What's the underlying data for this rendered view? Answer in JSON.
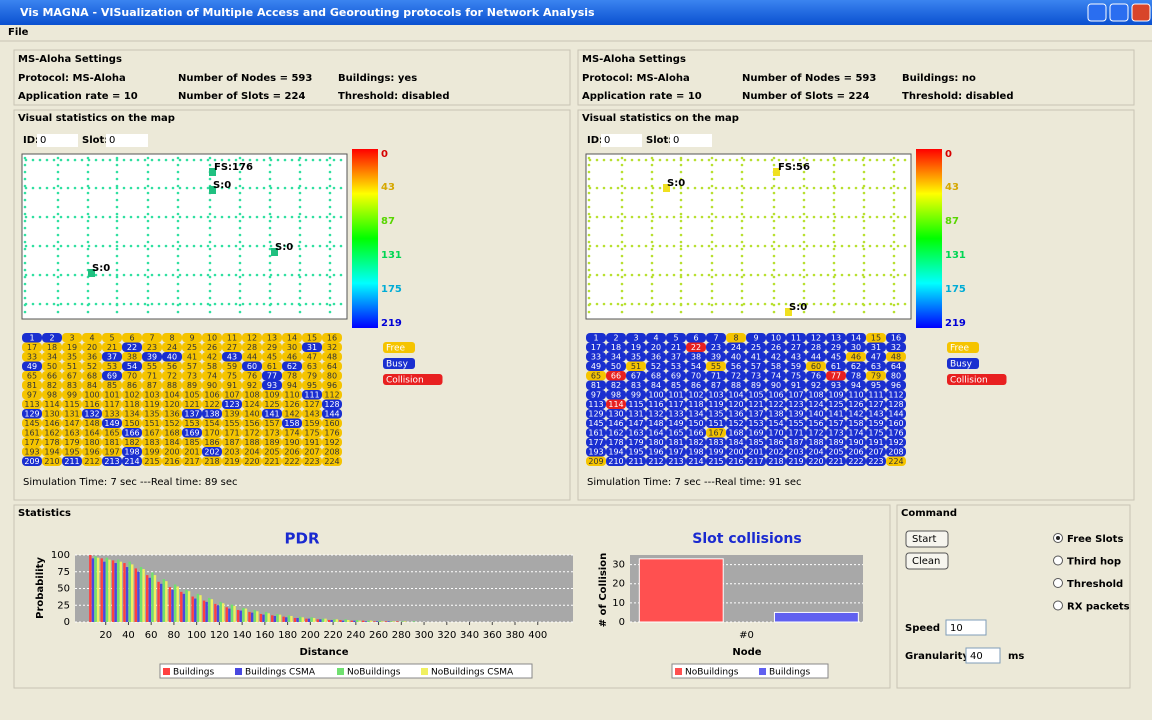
{
  "window": {
    "title": "Vis MAGNA - VISualization of Multiple Access and Georouting protocols for Network Analysis",
    "menu": [
      "File"
    ]
  },
  "panels": [
    {
      "settings_title": "MS-Aloha Settings",
      "settings": [
        "Protocol: MS-Aloha",
        "Number of Nodes = 593",
        "Buildings: yes",
        "Application rate = 10",
        "Number of Slots = 224",
        "Threshold: disabled"
      ],
      "map_title": "Visual statistics on the map",
      "id_label": "ID:",
      "id_value": "0",
      "slot_label": "Slot:",
      "slot_value": "0",
      "map_labels": [
        "FS:176",
        "S:0",
        "S:0",
        "S:0"
      ],
      "slot_states": [
        1,
        1,
        0,
        0,
        0,
        0,
        0,
        0,
        0,
        0,
        0,
        0,
        0,
        0,
        0,
        0,
        0,
        0,
        0,
        0,
        0,
        1,
        0,
        0,
        0,
        0,
        0,
        0,
        0,
        0,
        1,
        0,
        0,
        0,
        0,
        0,
        1,
        0,
        1,
        1,
        0,
        0,
        1,
        0,
        0,
        0,
        0,
        0,
        1,
        0,
        0,
        0,
        0,
        1,
        0,
        0,
        0,
        0,
        0,
        1,
        0,
        1,
        0,
        0,
        0,
        0,
        0,
        0,
        1,
        0,
        0,
        0,
        0,
        0,
        0,
        0,
        1,
        0,
        0,
        0,
        0,
        0,
        0,
        0,
        0,
        0,
        0,
        0,
        0,
        0,
        0,
        0,
        1,
        0,
        0,
        0,
        0,
        0,
        0,
        0,
        0,
        0,
        0,
        0,
        0,
        0,
        0,
        0,
        0,
        0,
        1,
        0,
        0,
        0,
        0,
        0,
        0,
        0,
        0,
        0,
        0,
        0,
        1,
        0,
        0,
        0,
        0,
        1,
        1,
        0,
        0,
        1,
        0,
        0,
        0,
        0,
        1,
        1,
        0,
        0,
        1,
        0,
        0,
        1,
        0,
        0,
        0,
        0,
        1,
        0,
        0,
        0,
        0,
        0,
        0,
        0,
        0,
        1,
        0,
        0,
        0,
        0,
        0,
        0,
        0,
        1,
        0,
        0,
        1,
        0,
        0,
        0,
        0,
        0,
        0,
        0,
        0,
        0,
        0,
        0,
        0,
        0,
        0,
        0,
        0,
        0,
        0,
        0,
        0,
        0,
        0,
        0,
        0,
        0,
        0,
        0,
        0,
        1,
        0,
        0,
        0,
        1,
        0,
        0,
        0,
        0,
        0,
        0,
        1,
        0,
        1,
        0,
        1,
        1,
        0,
        0,
        0,
        0,
        0,
        0,
        0,
        0,
        0,
        0
      ],
      "sim_time": "Simulation Time: 7 sec ---Real time: 89 sec"
    },
    {
      "settings_title": "MS-Aloha Settings",
      "settings": [
        "Protocol: MS-Aloha",
        "Number of Nodes = 593",
        "Buildings: no",
        "Application rate = 10",
        "Number of Slots = 224",
        "Threshold: disabled"
      ],
      "map_title": "Visual statistics on the map",
      "id_label": "ID:",
      "id_value": "0",
      "slot_label": "Slot:",
      "slot_value": "0",
      "map_labels": [
        "FS:56",
        "S:0",
        "S:0"
      ],
      "slot_states": [
        1,
        1,
        1,
        1,
        1,
        1,
        1,
        0,
        1,
        1,
        1,
        1,
        1,
        1,
        0,
        1,
        1,
        1,
        1,
        1,
        1,
        2,
        1,
        1,
        1,
        1,
        1,
        1,
        1,
        1,
        1,
        1,
        1,
        1,
        1,
        1,
        1,
        1,
        1,
        1,
        1,
        1,
        1,
        1,
        1,
        0,
        1,
        0,
        1,
        1,
        0,
        1,
        1,
        1,
        0,
        1,
        1,
        1,
        1,
        0,
        1,
        1,
        1,
        1,
        0,
        2,
        1,
        1,
        1,
        1,
        1,
        1,
        1,
        1,
        1,
        1,
        2,
        1,
        0,
        1,
        1,
        1,
        1,
        1,
        1,
        1,
        1,
        1,
        1,
        1,
        1,
        1,
        1,
        1,
        1,
        1,
        1,
        1,
        1,
        1,
        1,
        1,
        1,
        1,
        1,
        1,
        1,
        1,
        1,
        1,
        1,
        1,
        1,
        2,
        1,
        1,
        1,
        1,
        1,
        1,
        1,
        1,
        1,
        1,
        1,
        1,
        1,
        1,
        1,
        1,
        1,
        1,
        1,
        1,
        1,
        1,
        1,
        1,
        1,
        1,
        1,
        1,
        1,
        1,
        1,
        1,
        1,
        1,
        1,
        1,
        1,
        1,
        1,
        1,
        1,
        1,
        1,
        1,
        1,
        1,
        1,
        1,
        1,
        1,
        1,
        1,
        0,
        1,
        1,
        1,
        1,
        1,
        1,
        1,
        1,
        1,
        1,
        1,
        1,
        1,
        1,
        1,
        1,
        1,
        1,
        1,
        1,
        1,
        1,
        1,
        1,
        1,
        1,
        1,
        1,
        1,
        1,
        1,
        1,
        1,
        1,
        1,
        1,
        1,
        1,
        1,
        1,
        1,
        0,
        1,
        1,
        1,
        1,
        1,
        1,
        1,
        1,
        1,
        1,
        1,
        1,
        1,
        1,
        0
      ],
      "sim_time": "Simulation Time: 7 sec ---Real time: 91 sec"
    }
  ],
  "color_scale": {
    "ticks": [
      0,
      43,
      87,
      131,
      175,
      219
    ]
  },
  "slot_legend": [
    {
      "name": "Free",
      "color": "#f5c400"
    },
    {
      "name": "Busy",
      "color": "#1a2fd0"
    },
    {
      "name": "Collision",
      "color": "#e82020"
    }
  ],
  "slot_numbers": [
    1,
    2,
    3,
    4,
    5,
    6,
    7,
    8,
    9,
    10,
    11,
    12,
    13,
    14,
    15,
    16,
    17,
    18,
    19,
    20,
    21,
    22,
    23,
    24,
    25,
    26,
    27,
    28,
    29,
    30,
    31,
    32,
    33,
    34,
    35,
    36,
    37,
    38,
    39,
    40,
    41,
    42,
    43,
    44,
    45,
    46,
    47,
    48,
    49,
    50,
    51,
    52,
    53,
    54,
    55,
    56,
    57,
    58,
    59,
    60,
    61,
    62,
    63,
    64,
    65,
    66,
    67,
    68,
    69,
    70,
    71,
    72,
    73,
    74,
    75,
    76,
    77,
    78,
    79,
    80,
    81,
    82,
    83,
    84,
    85,
    86,
    87,
    88,
    89,
    90,
    91,
    92,
    93,
    94,
    95,
    96,
    97,
    98,
    99,
    100,
    101,
    102,
    103,
    104,
    105,
    106,
    107,
    108,
    109,
    110,
    111,
    112,
    113,
    114,
    115,
    116,
    117,
    118,
    119,
    120,
    121,
    122,
    123,
    124,
    125,
    126,
    127,
    128,
    129,
    130,
    131,
    132,
    133,
    134,
    135,
    136,
    137,
    138,
    139,
    140,
    141,
    142,
    143,
    144,
    145,
    146,
    147,
    148,
    149,
    150,
    151,
    152,
    153,
    154,
    155,
    156,
    157,
    158,
    159,
    160,
    161,
    162,
    163,
    164,
    165,
    166,
    167,
    168,
    169,
    170,
    171,
    172,
    173,
    174,
    175,
    176,
    177,
    178,
    179,
    180,
    181,
    182,
    183,
    184,
    185,
    186,
    187,
    188,
    189,
    190,
    191,
    192,
    193,
    194,
    195,
    196,
    197,
    198,
    199,
    200,
    201,
    202,
    203,
    204,
    205,
    206,
    207,
    208,
    209,
    210,
    211,
    212,
    213,
    214,
    215,
    216,
    217,
    218,
    219,
    220,
    221,
    222,
    223,
    224
  ],
  "statistics_title": "Statistics",
  "chart_data": [
    {
      "type": "grouped-bar",
      "title": "PDR",
      "x_label": "Distance",
      "y_label": "Probability",
      "x": [
        10,
        20,
        30,
        40,
        50,
        60,
        70,
        80,
        90,
        100,
        110,
        120,
        130,
        140,
        150,
        160,
        170,
        180,
        190,
        200,
        210,
        220,
        230,
        240,
        250,
        260,
        270,
        280,
        290,
        300
      ],
      "series": [
        {
          "name": "Buildings",
          "color": "#ff4040",
          "values": [
            100,
            95,
            92,
            88,
            80,
            70,
            60,
            52,
            45,
            38,
            32,
            27,
            22,
            18,
            15,
            12,
            10,
            8,
            6,
            5,
            4,
            3,
            3,
            2,
            2,
            1,
            1,
            1,
            0,
            0
          ]
        },
        {
          "name": "Buildings CSMA",
          "color": "#4848e0",
          "values": [
            95,
            90,
            88,
            82,
            75,
            66,
            57,
            48,
            42,
            35,
            30,
            25,
            20,
            17,
            14,
            11,
            9,
            7,
            6,
            5,
            4,
            3,
            2,
            2,
            1,
            1,
            1,
            0,
            0,
            0
          ]
        },
        {
          "name": "NoBuildings",
          "color": "#70e070",
          "values": [
            98,
            96,
            93,
            90,
            82,
            74,
            64,
            56,
            48,
            42,
            36,
            30,
            26,
            21,
            18,
            15,
            12,
            10,
            8,
            7,
            5,
            4,
            4,
            3,
            2,
            2,
            1,
            1,
            1,
            0
          ]
        },
        {
          "name": "NoBuildings CSMA",
          "color": "#f0f060",
          "values": [
            96,
            93,
            90,
            86,
            79,
            70,
            61,
            53,
            46,
            40,
            34,
            28,
            24,
            20,
            16,
            13,
            11,
            9,
            7,
            6,
            5,
            4,
            3,
            2,
            2,
            1,
            1,
            1,
            0,
            0
          ]
        }
      ],
      "xlim": [
        -7,
        431
      ],
      "xticks": [
        20,
        40,
        60,
        80,
        100,
        120,
        140,
        160,
        180,
        200,
        220,
        240,
        260,
        280,
        300,
        320,
        340,
        360,
        380,
        400
      ],
      "ylim": [
        0,
        100
      ],
      "yticks": [
        0,
        25,
        50,
        75,
        100
      ],
      "grid": true
    },
    {
      "type": "bar",
      "title": "Slot collisions",
      "x_label": "Node",
      "y_label": "# of Collision",
      "categories": [
        "#0"
      ],
      "series": [
        {
          "name": "NoBuildings",
          "color": "#ff5050",
          "values": [
            33
          ]
        },
        {
          "name": "Buildings",
          "color": "#6060f0",
          "values": [
            5
          ]
        }
      ],
      "ylim": [
        0,
        35
      ],
      "yticks": [
        0,
        10,
        20,
        30
      ],
      "grid": true
    }
  ],
  "command": {
    "title": "Command",
    "buttons": [
      "Start",
      "Clean"
    ],
    "options": [
      "Free Slots",
      "Third hop",
      "Threshold",
      "RX packets"
    ],
    "selected": 0,
    "speed_label": "Speed",
    "speed_value": "10",
    "granularity_label": "Granularity",
    "granularity_value": "40",
    "granularity_unit": "ms"
  }
}
